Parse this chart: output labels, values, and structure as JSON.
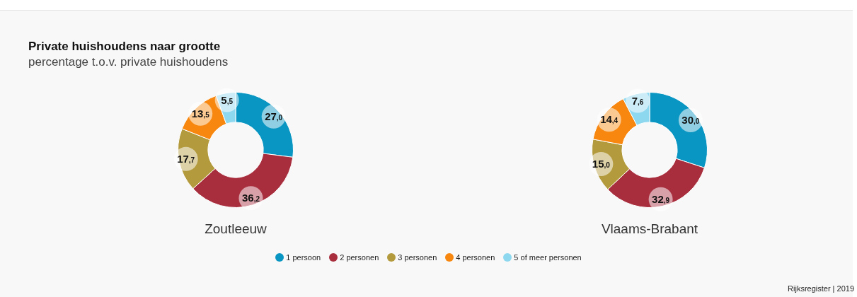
{
  "chart_data": [
    {
      "type": "donut",
      "title": "Private huishoudens naar grootte",
      "subtitle": "percentage t.o.v. private huishoudens",
      "xlabel": "Zoutleeuw",
      "categories": [
        "1 persoon",
        "2 personen",
        "3 personen",
        "4 personen",
        "5 of meer personen"
      ],
      "values": [
        27.0,
        36.2,
        17.7,
        13.5,
        5.5
      ],
      "value_labels": [
        "27,0",
        "36,2",
        "17,7",
        "13,5",
        "5,5"
      ],
      "colors": [
        "#0a96c2",
        "#a82e3e",
        "#b39a3c",
        "#f7870f",
        "#8ed8ef"
      ],
      "legend": "bottom",
      "annotations": [
        "Rijksregister | 2019"
      ]
    },
    {
      "type": "donut",
      "xlabel": "Vlaams-Brabant",
      "categories": [
        null,
        null,
        null,
        null,
        null
      ],
      "values": [
        30.0,
        32.9,
        15.0,
        14.4,
        7.6
      ],
      "value_labels": [
        "30,0",
        "32,9",
        "15,0",
        "14,4",
        "7,6"
      ],
      "colors": [
        "#0a96c2",
        "#a82e3e",
        "#b39a3c",
        "#f7870f",
        "#8ed8ef"
      ]
    }
  ]
}
